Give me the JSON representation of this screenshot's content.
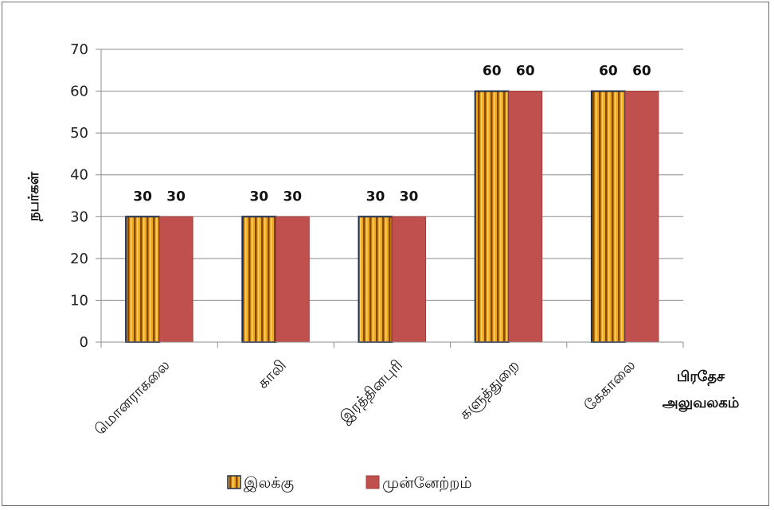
{
  "chart_data": {
    "type": "bar",
    "title": "",
    "ylabel": "நபர்கள்",
    "xlabel_lines": [
      "பிரதேச",
      "அலுவலகம்"
    ],
    "ylim": [
      0,
      70
    ],
    "yticks": [
      0,
      10,
      20,
      30,
      40,
      50,
      60,
      70
    ],
    "categories": [
      "மொனராகலை",
      "காலி",
      "இரத்தினபுரி",
      "களுத்துறை",
      "கேகாலை"
    ],
    "series": [
      {
        "name": "இலக்கு",
        "values": [
          30,
          30,
          30,
          60,
          60
        ],
        "color": "#d4880f",
        "pattern": "vertical-stripes"
      },
      {
        "name": "முன்னேற்றம்",
        "values": [
          30,
          30,
          30,
          60,
          60
        ],
        "color": "#c0504d"
      }
    ],
    "grid": true,
    "legend_position": "bottom",
    "data_labels": true
  }
}
